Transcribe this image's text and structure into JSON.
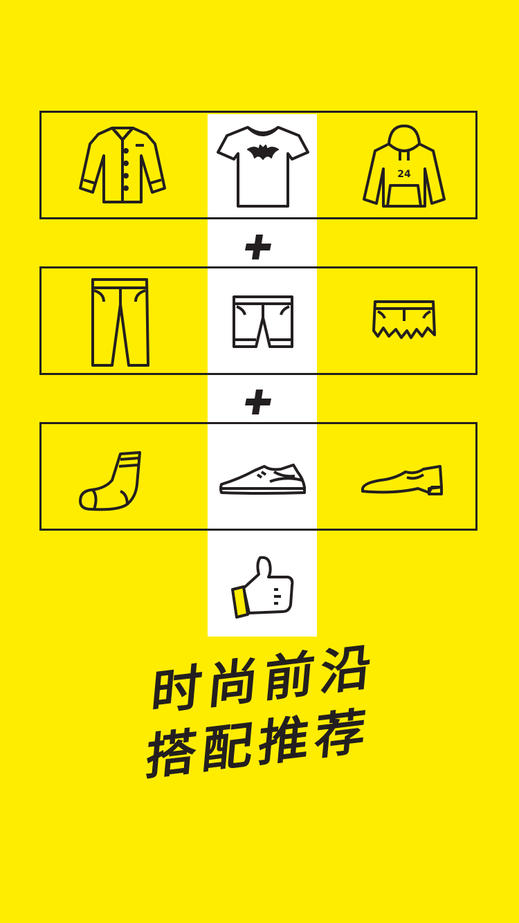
{
  "colors": {
    "background": "#FFED00",
    "highlight": "#FFFFFF",
    "ink": "#231F20"
  },
  "rows": [
    {
      "name": "tops",
      "items": [
        "shirt-icon",
        "tshirt-icon",
        "hoodie-icon"
      ],
      "selected": "tshirt-icon"
    },
    {
      "name": "bottoms",
      "items": [
        "trousers-icon",
        "shorts-icon",
        "ripped-shorts-icon"
      ],
      "selected": "shorts-icon"
    },
    {
      "name": "footwear",
      "items": [
        "sock-icon",
        "sneaker-icon",
        "dress-shoe-icon"
      ],
      "selected": "sneaker-icon"
    }
  ],
  "hoodie_number": "24",
  "result_icon": "thumbs-up-icon",
  "slogan": {
    "line1": "时尚前沿",
    "line2": "搭配推荐"
  }
}
